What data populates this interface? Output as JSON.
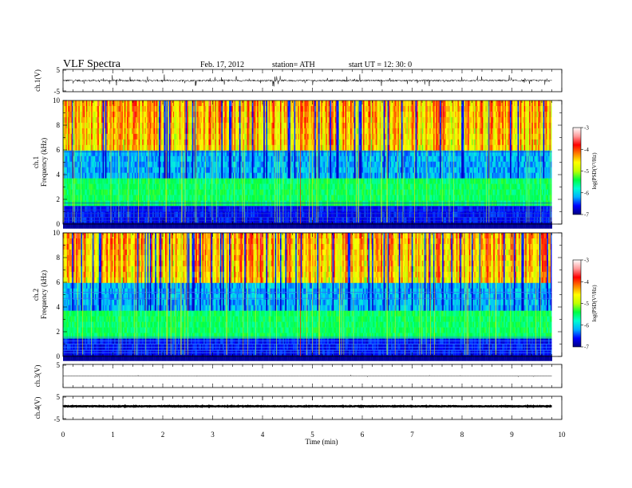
{
  "header": {
    "title": "VLF  Spectra",
    "date": "Feb. 17, 2012",
    "station": "station= ATH",
    "start": "start  UT  =    12: 30: 0"
  },
  "chart_data": [
    {
      "type": "line",
      "name": "ch1-waveform",
      "ylabel": "ch.1(V)",
      "yticks": [
        "5",
        "-5"
      ],
      "ylim": [
        -5,
        5
      ],
      "xlim": [
        0,
        10
      ]
    },
    {
      "type": "heatmap",
      "name": "ch1-spectrogram",
      "ylabel": "ch.1\nFrequency (kHz)",
      "ylabel_lines": [
        "ch.1",
        "Frequency  (kHz)"
      ],
      "ylim": [
        0,
        10
      ],
      "yticks": [
        "0",
        "2",
        "4",
        "6",
        "8",
        "10"
      ],
      "xlim": [
        0,
        10
      ],
      "data_end_min": 9.8,
      "colorbar": {
        "label": "log(PSD(V²/Hz)",
        "range": [
          -7,
          -3
        ],
        "ticks": [
          "-3",
          "-4",
          "-5",
          "-6",
          "-7"
        ],
        "colors": [
          "#000080",
          "#0000ff",
          "#00b0ff",
          "#00ffd0",
          "#00ff40",
          "#c0ff00",
          "#ffff00",
          "#ff8000",
          "#ff0000",
          "#ff9a9a",
          "#ffffff"
        ]
      }
    },
    {
      "type": "heatmap",
      "name": "ch2-spectrogram",
      "ylabel": "ch.2\nFrequency (kHz)",
      "ylabel_lines": [
        "ch.2",
        "Frequency  (kHz)"
      ],
      "ylim": [
        0,
        10
      ],
      "yticks": [
        "0",
        "2",
        "4",
        "6",
        "8",
        "10"
      ],
      "xlim": [
        0,
        10
      ],
      "data_end_min": 9.8,
      "colorbar": {
        "label": "log(PSD(V²/Hz)",
        "range": [
          -7,
          -3
        ],
        "ticks": [
          "-3",
          "-4",
          "-5",
          "-6",
          "-7"
        ],
        "colors": [
          "#000080",
          "#0000ff",
          "#00b0ff",
          "#00ffd0",
          "#00ff40",
          "#c0ff00",
          "#ffff00",
          "#ff8000",
          "#ff0000",
          "#ff9a9a",
          "#ffffff"
        ]
      }
    },
    {
      "type": "line",
      "name": "ch3-waveform",
      "ylabel": "ch.3(V)",
      "yticks": [
        "5"
      ],
      "ylim": [
        -5,
        5
      ],
      "xlim": [
        0,
        10
      ]
    },
    {
      "type": "line",
      "name": "ch4-waveform",
      "ylabel": "ch.4(V)",
      "yticks": [
        "5",
        "-5"
      ],
      "ylim": [
        -5,
        5
      ],
      "xlim": [
        0,
        10
      ]
    }
  ],
  "xaxis": {
    "label": "Time  (min)",
    "ticks": [
      "0",
      "1",
      "2",
      "3",
      "4",
      "5",
      "6",
      "7",
      "8",
      "9",
      "10"
    ],
    "range": [
      0,
      10
    ]
  }
}
